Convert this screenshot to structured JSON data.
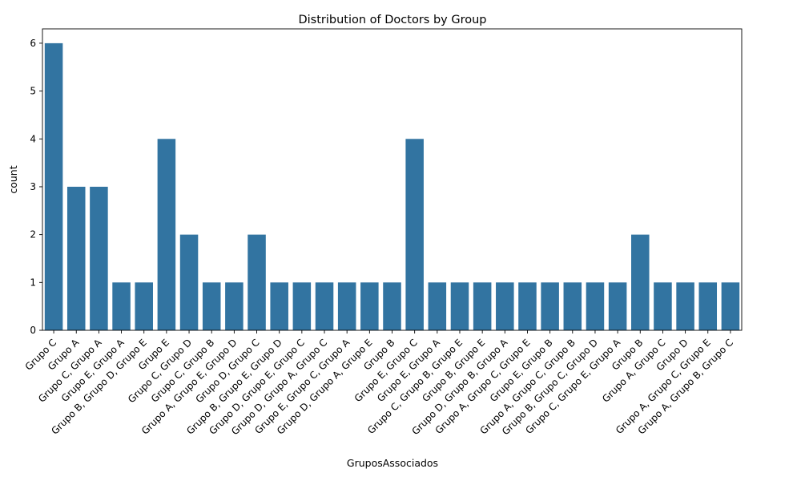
{
  "chart_data": {
    "type": "bar",
    "title": "Distribution of Doctors by Group",
    "xlabel": "GruposAssociados",
    "ylabel": "count",
    "ylim": [
      0,
      6.3
    ],
    "yticks": [
      0,
      1,
      2,
      3,
      4,
      5,
      6
    ],
    "grid": false,
    "legend": "none",
    "bar_color": "#3274a1",
    "categories": [
      "Grupo C",
      "Grupo A",
      "Grupo C, Grupo A",
      "Grupo E, Grupo A",
      "Grupo B, Grupo D, Grupo E",
      "Grupo E",
      "Grupo C, Grupo D",
      "Grupo C, Grupo B",
      "Grupo A, Grupo E, Grupo D",
      "Grupo D, Grupo C",
      "Grupo B, Grupo E, Grupo D",
      "Grupo D, Grupo E, Grupo C",
      "Grupo D, Grupo A, Grupo C",
      "Grupo E, Grupo C, Grupo A",
      "Grupo D, Grupo A, Grupo E",
      "Grupo B",
      "Grupo E, Grupo C",
      "Grupo E, Grupo A",
      "Grupo C, Grupo B, Grupo E",
      "Grupo B, Grupo E",
      "Grupo D, Grupo B, Grupo A",
      "Grupo A, Grupo C, Grupo E",
      "Grupo E, Grupo B",
      "Grupo A, Grupo C, Grupo B",
      "Grupo B, Grupo C, Grupo D",
      "Grupo C, Grupo E, Grupo A",
      "Grupo B",
      "Grupo A, Grupo C",
      "Grupo D",
      "Grupo A, Grupo C, Grupo E",
      "Grupo A, Grupo B, Grupo C"
    ],
    "values": [
      6,
      3,
      3,
      1,
      1,
      4,
      2,
      1,
      1,
      2,
      1,
      1,
      1,
      1,
      1,
      1,
      4,
      1,
      1,
      1,
      1,
      1,
      1,
      1,
      1,
      1,
      2,
      1,
      1,
      1,
      1
    ]
  }
}
